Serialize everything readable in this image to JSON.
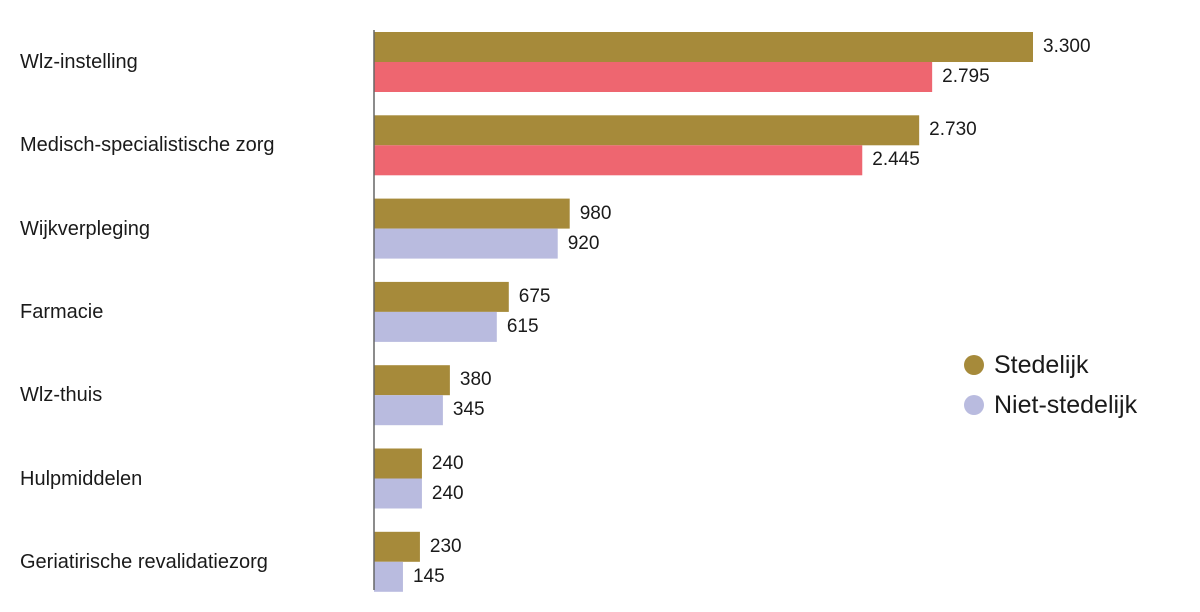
{
  "chart_data": {
    "type": "bar",
    "orientation": "horizontal",
    "categories": [
      "Wlz-instelling",
      "Medisch-specialistische zorg",
      "Wijkverpleging",
      "Farmacie",
      "Wlz-thuis",
      "Hulpmiddelen",
      "Geriatirische revalidatiezorg"
    ],
    "series": [
      {
        "name": "Stedelijk",
        "values": [
          3300,
          2730,
          980,
          675,
          380,
          240,
          230
        ],
        "labels": [
          "3.300",
          "2.730",
          "980",
          "675",
          "380",
          "240",
          "230"
        ],
        "color": "#a68a3a"
      },
      {
        "name": "Niet-stedelijk",
        "values": [
          2795,
          2445,
          920,
          615,
          345,
          240,
          145
        ],
        "labels": [
          "2.795",
          "2.445",
          "920",
          "615",
          "345",
          "240",
          "145"
        ],
        "color": "#b9bbdf",
        "highlight_color": "#ee6670",
        "highlighted_categories": [
          0,
          1
        ]
      }
    ],
    "xlim": [
      0,
      3300
    ],
    "grid": false,
    "legend_position": "right",
    "axis_color": "#666666"
  }
}
